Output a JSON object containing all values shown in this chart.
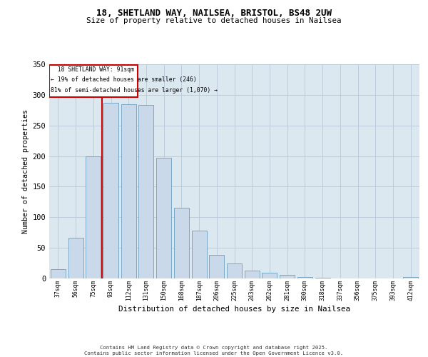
{
  "title1": "18, SHETLAND WAY, NAILSEA, BRISTOL, BS48 2UW",
  "title2": "Size of property relative to detached houses in Nailsea",
  "xlabel": "Distribution of detached houses by size in Nailsea",
  "ylabel": "Number of detached properties",
  "categories": [
    "37sqm",
    "56sqm",
    "75sqm",
    "93sqm",
    "112sqm",
    "131sqm",
    "150sqm",
    "168sqm",
    "187sqm",
    "206sqm",
    "225sqm",
    "243sqm",
    "262sqm",
    "281sqm",
    "300sqm",
    "318sqm",
    "337sqm",
    "356sqm",
    "375sqm",
    "393sqm",
    "412sqm"
  ],
  "bar_heights": [
    15,
    67,
    200,
    287,
    285,
    284,
    197,
    115,
    78,
    38,
    25,
    13,
    9,
    6,
    2,
    1,
    0,
    0,
    0,
    0,
    2
  ],
  "bar_color": "#c9d9ea",
  "bar_edge_color": "#6a9fc0",
  "grid_color": "#b8c8d8",
  "bg_color": "#dce8f0",
  "annotation_box_color": "#cc0000",
  "annotation_line_color": "#cc0000",
  "property_label": "18 SHETLAND WAY: 91sqm",
  "smaller_pct": "19%",
  "smaller_count": "246",
  "larger_pct": "81%",
  "larger_count": "1,070",
  "ylim": [
    0,
    350
  ],
  "yticks": [
    0,
    50,
    100,
    150,
    200,
    250,
    300,
    350
  ],
  "red_line_x": 2.5,
  "footer1": "Contains HM Land Registry data © Crown copyright and database right 2025.",
  "footer2": "Contains public sector information licensed under the Open Government Licence v3.0."
}
